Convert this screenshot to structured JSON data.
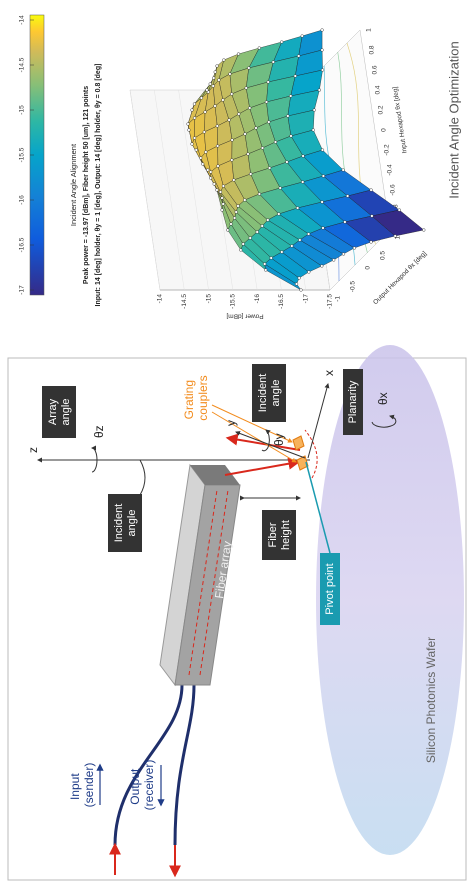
{
  "diagram": {
    "z_axis": "z",
    "x_axis": "x",
    "y_axis": "y",
    "theta_z": "θz",
    "theta_y": "θy",
    "theta_x": "θx",
    "boxes": [
      {
        "lines": [
          "Array",
          "angle"
        ]
      },
      {
        "lines": [
          "Incident",
          "angle"
        ]
      },
      {
        "lines": [
          "Incident",
          "angle"
        ]
      },
      {
        "lines": [
          "Planarity"
        ]
      },
      {
        "lines": [
          "Fiber",
          "height"
        ]
      },
      {
        "lines": [
          "Pivot point"
        ]
      }
    ],
    "grating_couplers": [
      "Grating",
      "couplers"
    ],
    "fiber_array": "Fiber array",
    "input": [
      "Input",
      "(sender)"
    ],
    "output": [
      "Output",
      "(receiver)"
    ],
    "wafer": "Silicon Photonics Wafer"
  },
  "plot": {
    "title": [
      "Incident Angle Alignment",
      "Peak power = -13.97 [dBm], Fiber height 50 [um], 121 points",
      "Input: 14 [deg] holder, θy = 1 [deg], Output: 14 [deg] holder, θy = 0.8 [deg]"
    ],
    "colorbar_ticks": [
      "-14",
      "-14.5",
      "-15",
      "-15.5",
      "-16",
      "-16.5",
      "-17"
    ],
    "z_label": "Power [dBm]",
    "z_ticks": [
      "-14",
      "-14.5",
      "-15",
      "-15.5",
      "-16",
      "-16.5",
      "-17",
      "-17.5"
    ],
    "x_label": "Input Hexapod θx [deg]",
    "x_ticks": [
      "-1",
      "-0.8",
      "-0.6",
      "-0.4",
      "-0.2",
      "0",
      "0.2",
      "0.4",
      "0.6",
      "0.8",
      "1"
    ],
    "y_label": "Output Hexapod θx [deg]",
    "y_ticks": [
      "-1",
      "-0.5",
      "0",
      "0.5",
      "1"
    ]
  },
  "caption": "Incident Angle Optimization"
}
